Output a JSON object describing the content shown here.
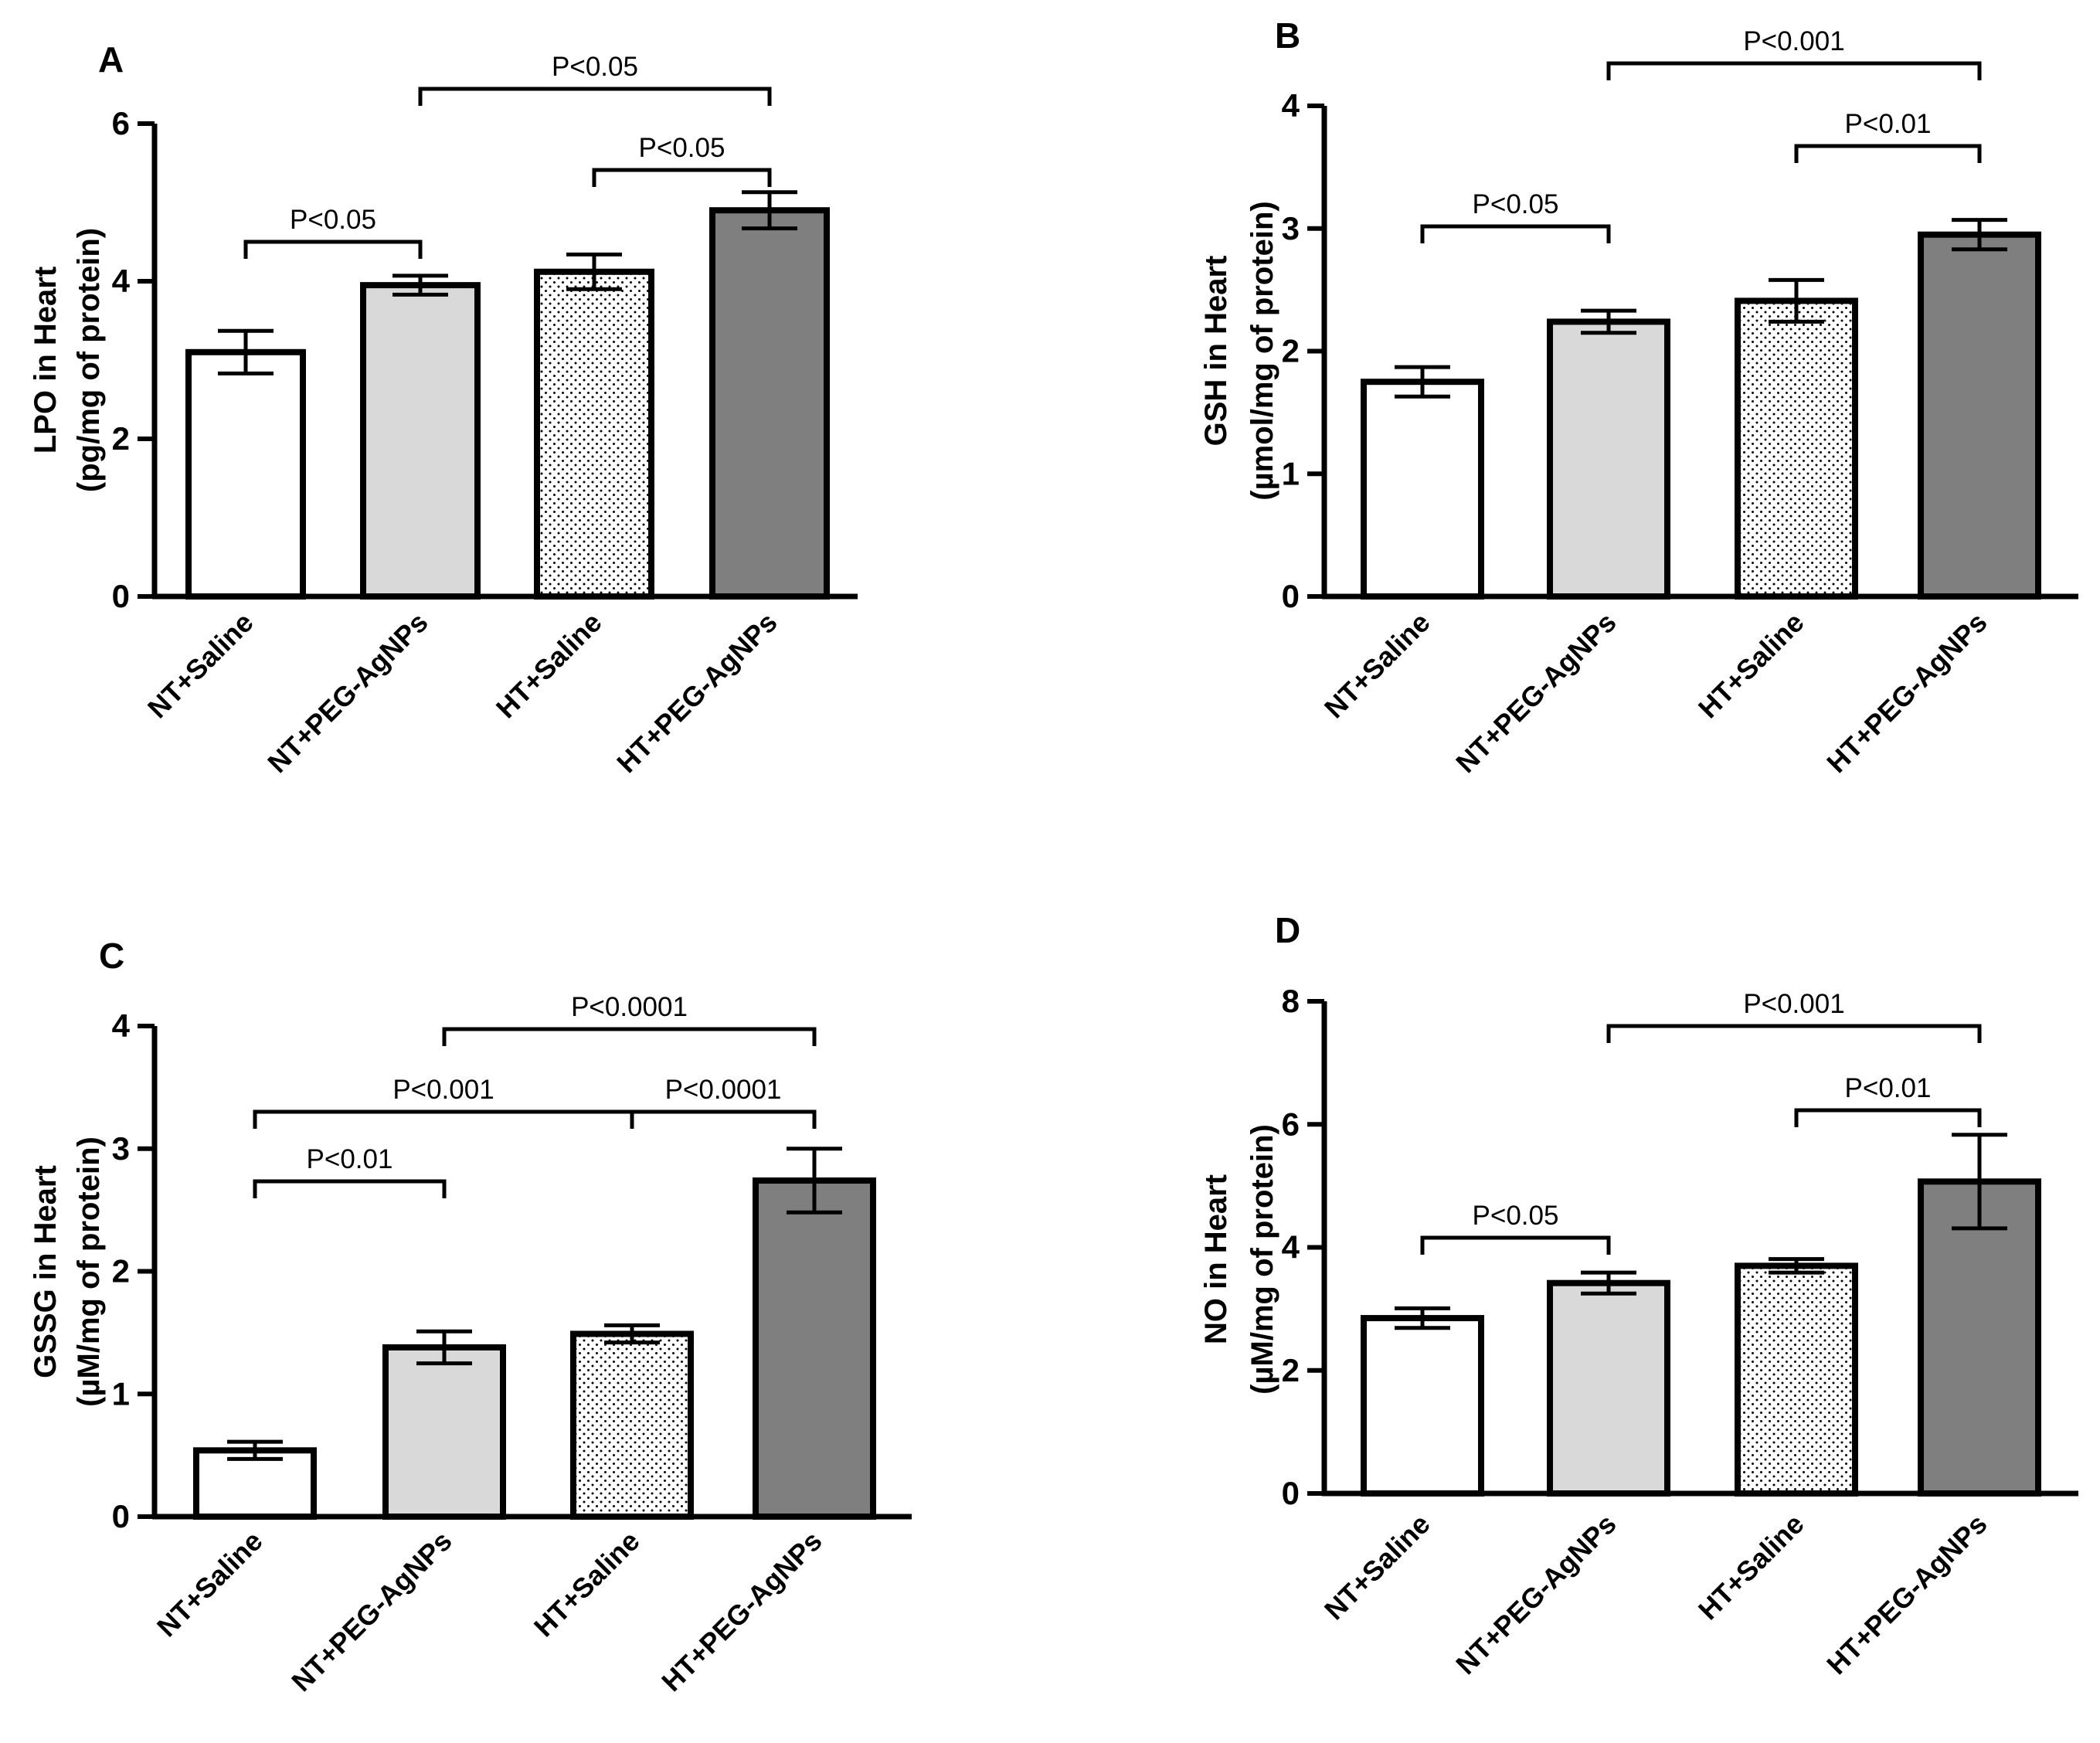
{
  "chart_data": [
    {
      "type": "bar",
      "panel": "A",
      "categories": [
        "NT+Saline",
        "NT+PEG-AgNPs",
        "HT+Saline",
        "HT+PEG-AgNPs"
      ],
      "values": [
        3.1,
        3.95,
        4.12,
        4.9
      ],
      "errors": [
        0.27,
        0.12,
        0.22,
        0.23
      ],
      "ylabel_line1": "LPO in Heart",
      "ylabel_line2": "(pg/mg of protein)",
      "ylim": [
        0,
        6
      ],
      "ticks": [
        "0",
        "2",
        "4",
        "6"
      ],
      "comparisons": [
        {
          "from": 0,
          "to": 1,
          "label": "P<0.05"
        },
        {
          "from": 2,
          "to": 3,
          "label": "P<0.05"
        },
        {
          "from": 1,
          "to": 3,
          "label": "P<0.05"
        }
      ]
    },
    {
      "type": "bar",
      "panel": "B",
      "categories": [
        "NT+Saline",
        "NT+PEG-AgNPs",
        "HT+Saline",
        "HT+PEG-AgNPs"
      ],
      "values": [
        1.75,
        2.24,
        2.41,
        2.95
      ],
      "errors": [
        0.12,
        0.09,
        0.17,
        0.12
      ],
      "ylabel_line1": "GSH in Heart",
      "ylabel_line2": "(µmol/mg of protein)",
      "ylim": [
        0,
        4
      ],
      "ticks": [
        "0",
        "1",
        "2",
        "3",
        "4"
      ],
      "comparisons": [
        {
          "from": 0,
          "to": 1,
          "label": "P<0.05"
        },
        {
          "from": 2,
          "to": 3,
          "label": "P<0.01"
        },
        {
          "from": 1,
          "to": 3,
          "label": "P<0.001"
        }
      ]
    },
    {
      "type": "bar",
      "panel": "C",
      "categories": [
        "NT+Saline",
        "NT+PEG-AgNPs",
        "HT+Saline",
        "HT+PEG-AgNPs"
      ],
      "values": [
        0.54,
        1.38,
        1.49,
        2.74
      ],
      "errors": [
        0.07,
        0.13,
        0.07,
        0.26
      ],
      "ylabel_line1": "GSSG in Heart",
      "ylabel_line2": "(µM/mg of protein)",
      "ylim": [
        0,
        4
      ],
      "ticks": [
        "0",
        "1",
        "2",
        "3",
        "4"
      ],
      "comparisons": [
        {
          "from": 0,
          "to": 1,
          "label": "P<0.01"
        },
        {
          "from": 0,
          "to": 2,
          "label": "P<0.001"
        },
        {
          "from": 2,
          "to": 3,
          "label": "P<0.0001"
        },
        {
          "from": 1,
          "to": 3,
          "label": "P<0.0001"
        }
      ]
    },
    {
      "type": "bar",
      "panel": "D",
      "categories": [
        "NT+Saline",
        "NT+PEG-AgNPs",
        "HT+Saline",
        "HT+PEG-AgNPs"
      ],
      "values": [
        2.85,
        3.42,
        3.7,
        5.07
      ],
      "errors": [
        0.16,
        0.17,
        0.11,
        0.76
      ],
      "ylabel_line1": "NO in Heart",
      "ylabel_line2": "(µM/mg of protein)",
      "ylim": [
        0,
        8
      ],
      "ticks": [
        "0",
        "2",
        "4",
        "6",
        "8"
      ],
      "comparisons": [
        {
          "from": 0,
          "to": 1,
          "label": "P<0.05"
        },
        {
          "from": 2,
          "to": 3,
          "label": "P<0.01"
        },
        {
          "from": 1,
          "to": 3,
          "label": "P<0.001"
        }
      ]
    }
  ],
  "bar_fills": [
    "#ffffff",
    "#d9d9d9",
    "dotted",
    "#7f7f7f"
  ],
  "ink_color": "#000000"
}
